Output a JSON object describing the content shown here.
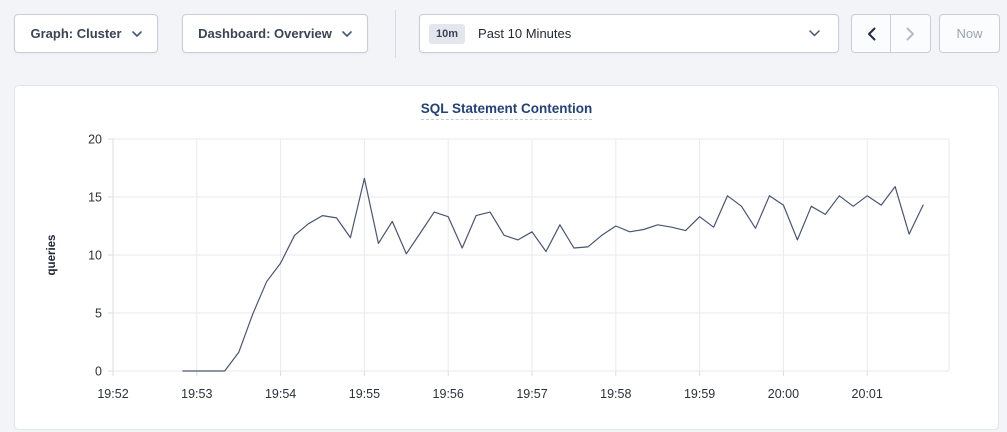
{
  "page": {
    "background": "#f3f4f8",
    "panel_background": "#ffffff"
  },
  "toolbar": {
    "graph_selector": {
      "label": "Graph: Cluster"
    },
    "dashboard_selector": {
      "label": "Dashboard: Overview"
    },
    "time_range_selector": {
      "badge": "10m",
      "label": "Past 10 Minutes"
    },
    "prev_button": {
      "icon": "chevron-left-icon",
      "enabled": true
    },
    "next_button": {
      "icon": "chevron-right-icon",
      "enabled": false
    },
    "now_button": {
      "label": "Now",
      "enabled": false
    }
  },
  "chart_data": {
    "type": "line",
    "title": "SQL Statement Contention",
    "xlabel": "",
    "ylabel": "queries",
    "ylim": [
      0,
      20
    ],
    "yticks": [
      0,
      5,
      10,
      15,
      20
    ],
    "xticks": [
      "19:52",
      "19:53",
      "19:54",
      "19:55",
      "19:56",
      "19:57",
      "19:58",
      "19:59",
      "20:00",
      "20:01"
    ],
    "x_start": "19:52:00",
    "x_end": "20:01:58",
    "grid": true,
    "legend_position": "none",
    "line_color": "#4a5474",
    "grid_color": "#e9eaee",
    "axis_color": "#dbdde3",
    "tick_label_color": "#2c313a",
    "title_color": "#24417c",
    "series": [
      {
        "name": "queries",
        "points": [
          [
            "19:52:50",
            0
          ],
          [
            "19:53:00",
            0
          ],
          [
            "19:53:10",
            0
          ],
          [
            "19:53:20",
            0
          ],
          [
            "19:53:30",
            1.6
          ],
          [
            "19:53:40",
            4.9
          ],
          [
            "19:53:50",
            7.7
          ],
          [
            "19:54:00",
            9.3
          ],
          [
            "19:54:10",
            11.7
          ],
          [
            "19:54:20",
            12.7
          ],
          [
            "19:54:30",
            13.4
          ],
          [
            "19:54:40",
            13.2
          ],
          [
            "19:54:50",
            11.5
          ],
          [
            "19:55:00",
            16.6
          ],
          [
            "19:55:10",
            11.0
          ],
          [
            "19:55:20",
            12.9
          ],
          [
            "19:55:30",
            10.1
          ],
          [
            "19:55:40",
            11.9
          ],
          [
            "19:55:50",
            13.7
          ],
          [
            "19:56:00",
            13.3
          ],
          [
            "19:56:10",
            10.6
          ],
          [
            "19:56:20",
            13.4
          ],
          [
            "19:56:30",
            13.7
          ],
          [
            "19:56:40",
            11.7
          ],
          [
            "19:56:50",
            11.3
          ],
          [
            "19:57:00",
            12.0
          ],
          [
            "19:57:10",
            10.3
          ],
          [
            "19:57:20",
            12.6
          ],
          [
            "19:57:30",
            10.6
          ],
          [
            "19:57:40",
            10.7
          ],
          [
            "19:57:50",
            11.7
          ],
          [
            "19:58:00",
            12.5
          ],
          [
            "19:58:10",
            12.0
          ],
          [
            "19:58:20",
            12.2
          ],
          [
            "19:58:30",
            12.6
          ],
          [
            "19:58:40",
            12.4
          ],
          [
            "19:58:50",
            12.1
          ],
          [
            "19:59:00",
            13.3
          ],
          [
            "19:59:10",
            12.4
          ],
          [
            "19:59:20",
            15.1
          ],
          [
            "19:59:30",
            14.2
          ],
          [
            "19:59:40",
            12.3
          ],
          [
            "19:59:50",
            15.1
          ],
          [
            "20:00:00",
            14.3
          ],
          [
            "20:00:10",
            11.3
          ],
          [
            "20:00:20",
            14.2
          ],
          [
            "20:00:30",
            13.5
          ],
          [
            "20:00:40",
            15.1
          ],
          [
            "20:00:50",
            14.2
          ],
          [
            "20:01:00",
            15.1
          ],
          [
            "20:01:10",
            14.3
          ],
          [
            "20:01:20",
            15.9
          ],
          [
            "20:01:30",
            11.8
          ],
          [
            "20:01:40",
            14.3
          ]
        ]
      }
    ]
  }
}
